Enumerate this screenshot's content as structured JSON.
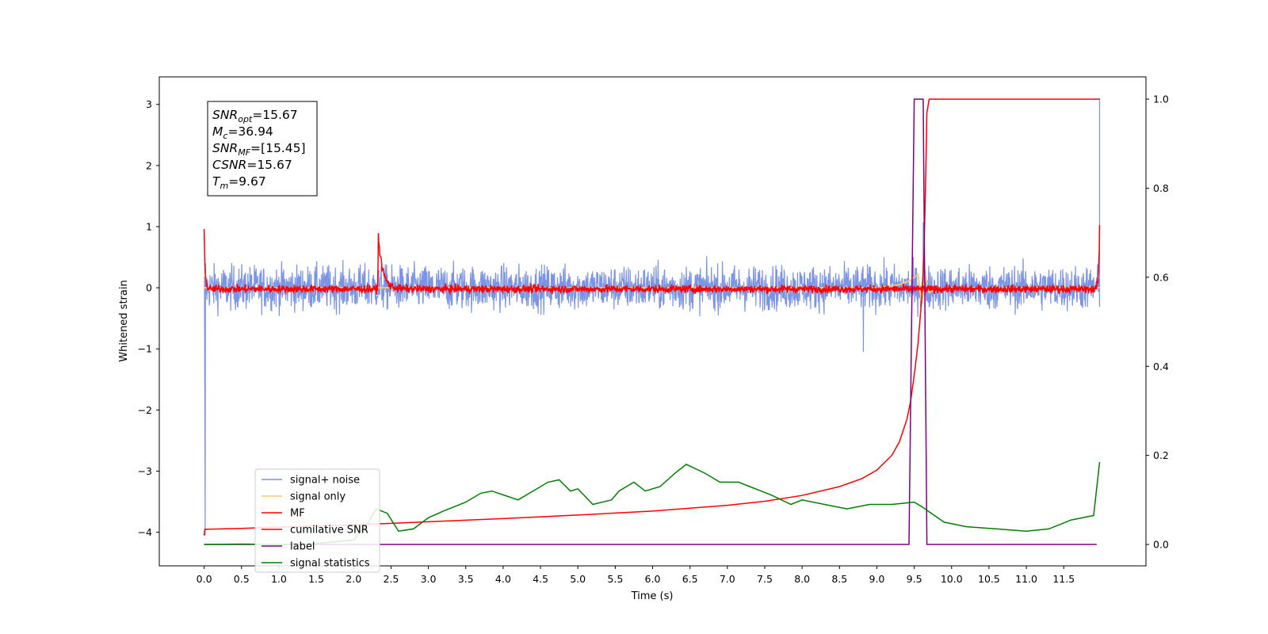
{
  "chart_data": {
    "type": "line",
    "xlabel": "Time (s)",
    "ylabel": "Whitened strain",
    "xlim": [
      -0.6,
      12.6
    ],
    "ylim": [
      -4.55,
      3.45
    ],
    "y2lim": [
      -0.048,
      1.05
    ],
    "x_ticks": [
      0.0,
      0.5,
      1.0,
      1.5,
      2.0,
      2.5,
      3.0,
      3.5,
      4.0,
      4.5,
      5.0,
      5.5,
      6.0,
      6.5,
      7.0,
      7.5,
      8.0,
      8.5,
      9.0,
      9.5,
      10.0,
      10.5,
      11.0,
      11.5
    ],
    "x_tick_labels": [
      "0.0",
      "0.5",
      "1.0",
      "1.5",
      "2.0",
      "2.5",
      "3.0",
      "3.5",
      "4.0",
      "4.5",
      "5.0",
      "5.5",
      "6.0",
      "6.5",
      "7.0",
      "7.5",
      "8.0",
      "8.5",
      "9.0",
      "9.5",
      "10.0",
      "10.5",
      "11.0",
      "11.5"
    ],
    "y_ticks": [
      -4,
      -3,
      -2,
      -1,
      0,
      1,
      2,
      3
    ],
    "y_tick_labels": [
      "−4",
      "−3",
      "−2",
      "−1",
      "0",
      "1",
      "2",
      "3"
    ],
    "y2_ticks": [
      0.0,
      0.2,
      0.4,
      0.6,
      0.8,
      1.0
    ],
    "y2_tick_labels": [
      "0.0",
      "0.2",
      "0.4",
      "0.6",
      "0.8",
      "1.0"
    ],
    "grid": false,
    "legend_position": "lower-left",
    "info_box": [
      {
        "main": "SNR",
        "sub": "opt",
        "rest": "=15.67"
      },
      {
        "main": "M",
        "sub": "c",
        "rest": "=36.94"
      },
      {
        "main": "SNR",
        "sub": "MF",
        "rest": "=[15.45]"
      },
      {
        "main": "CSNR",
        "sub": "",
        "rest": "=15.67"
      },
      {
        "main": "T",
        "sub": "m",
        "rest": "=9.67"
      }
    ],
    "series": [
      {
        "name": "signal+ noise",
        "axis": "left",
        "color": "#7b94e6",
        "style": "noise",
        "x_range": [
          0.0,
          11.98
        ],
        "baseline": 0,
        "amplitude_envelope": 0.5,
        "notable_points": [
          [
            0.0,
            -2.2
          ],
          [
            0.0,
            -4.05
          ],
          [
            8.82,
            -1.05
          ],
          [
            9.62,
            1.07
          ],
          [
            11.98,
            3.1
          ],
          [
            11.98,
            -0.2
          ]
        ]
      },
      {
        "name": "signal only",
        "axis": "left",
        "color": "#f5c97a",
        "x": [
          0.0,
          9.0,
          9.3,
          9.45,
          9.55,
          9.6,
          9.65,
          9.7,
          9.8,
          11.98
        ],
        "y": [
          0.0,
          0.0,
          0.05,
          0.12,
          0.22,
          -0.25,
          0.2,
          -0.08,
          0.0,
          0.0
        ]
      },
      {
        "name": "MF",
        "axis": "left",
        "color": "#ff0000",
        "style": "noise",
        "x_range": [
          0.0,
          11.98
        ],
        "baseline": -0.02,
        "amplitude_envelope": 0.09,
        "peaks": [
          [
            0.0,
            1.0
          ],
          [
            2.33,
            0.85
          ],
          [
            11.98,
            1.0
          ]
        ]
      },
      {
        "name": "cumilative SNR",
        "axis": "right",
        "color": "#ff0000",
        "x": [
          0.0,
          0.01,
          0.5,
          1.0,
          2.0,
          3.0,
          4.0,
          5.0,
          6.0,
          7.0,
          7.5,
          8.0,
          8.5,
          8.8,
          9.0,
          9.2,
          9.3,
          9.4,
          9.45,
          9.5,
          9.55,
          9.6,
          9.63,
          9.65,
          9.67,
          9.7,
          11.98
        ],
        "y": [
          0.02,
          0.034,
          0.036,
          0.039,
          0.044,
          0.051,
          0.058,
          0.066,
          0.075,
          0.088,
          0.097,
          0.11,
          0.13,
          0.148,
          0.167,
          0.2,
          0.23,
          0.28,
          0.32,
          0.38,
          0.45,
          0.55,
          0.65,
          0.8,
          0.97,
          1.0,
          1.0
        ]
      },
      {
        "name": "label",
        "axis": "right",
        "color": "#800080",
        "x": [
          0.0,
          9.43,
          9.5,
          9.62,
          9.67,
          11.94
        ],
        "y": [
          0.0,
          0.0,
          1.0,
          1.0,
          0.0,
          0.0
        ]
      },
      {
        "name": "signal statistics",
        "axis": "right",
        "color": "#008000",
        "x": [
          0.0,
          0.5,
          1.0,
          1.5,
          2.0,
          2.2,
          2.3,
          2.45,
          2.6,
          2.8,
          3.0,
          3.2,
          3.5,
          3.7,
          3.85,
          4.2,
          4.4,
          4.6,
          4.75,
          4.9,
          5.0,
          5.2,
          5.45,
          5.55,
          5.75,
          5.9,
          6.1,
          6.3,
          6.45,
          6.7,
          6.9,
          7.15,
          7.3,
          7.45,
          7.6,
          7.85,
          8.0,
          8.3,
          8.6,
          8.9,
          9.2,
          9.5,
          9.6,
          9.9,
          10.2,
          10.6,
          11.0,
          11.3,
          11.6,
          11.9,
          11.98
        ],
        "y": [
          0.0,
          0.001,
          0.0,
          0.002,
          0.01,
          0.05,
          0.08,
          0.07,
          0.03,
          0.035,
          0.06,
          0.075,
          0.095,
          0.115,
          0.12,
          0.1,
          0.12,
          0.14,
          0.145,
          0.12,
          0.125,
          0.09,
          0.1,
          0.12,
          0.14,
          0.12,
          0.13,
          0.16,
          0.18,
          0.16,
          0.14,
          0.14,
          0.13,
          0.12,
          0.11,
          0.09,
          0.1,
          0.09,
          0.08,
          0.09,
          0.09,
          0.095,
          0.085,
          0.05,
          0.04,
          0.035,
          0.03,
          0.035,
          0.055,
          0.065,
          0.185
        ]
      }
    ]
  }
}
